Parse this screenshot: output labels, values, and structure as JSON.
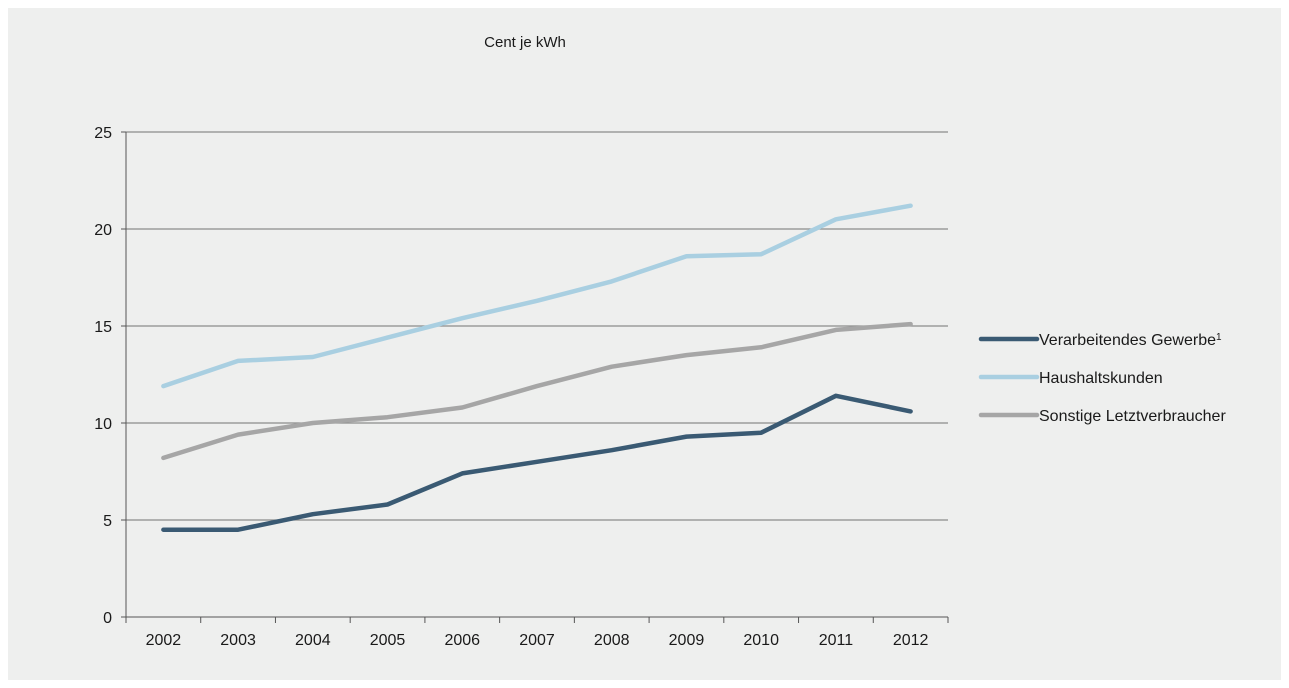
{
  "chart_data": {
    "type": "line",
    "title": "Cent je kWh",
    "x": [
      "2002",
      "2003",
      "2004",
      "2005",
      "2006",
      "2007",
      "2008",
      "2009",
      "2010",
      "2011",
      "2012"
    ],
    "ylim": [
      0,
      25
    ],
    "yticks": [
      "0",
      "5",
      "10",
      "15",
      "20",
      "25"
    ],
    "grid": true,
    "legend_position": "right",
    "series": [
      {
        "name": "Verarbeitendes Gewerbe",
        "name_sup": "1",
        "color": "#3a5a73",
        "values": [
          4.5,
          4.5,
          5.3,
          5.8,
          7.4,
          8.0,
          8.6,
          9.3,
          9.5,
          11.4,
          10.6
        ]
      },
      {
        "name": "Haushaltskunden",
        "color": "#a9cfe1",
        "values": [
          11.9,
          13.2,
          13.4,
          14.4,
          15.4,
          16.3,
          17.3,
          18.6,
          18.7,
          20.5,
          21.2
        ]
      },
      {
        "name": "Sonstige Letztverbraucher",
        "color": "#a6a6a6",
        "values": [
          8.2,
          9.4,
          10.0,
          10.3,
          10.8,
          11.9,
          12.9,
          13.5,
          13.9,
          14.8,
          15.1
        ]
      }
    ]
  }
}
